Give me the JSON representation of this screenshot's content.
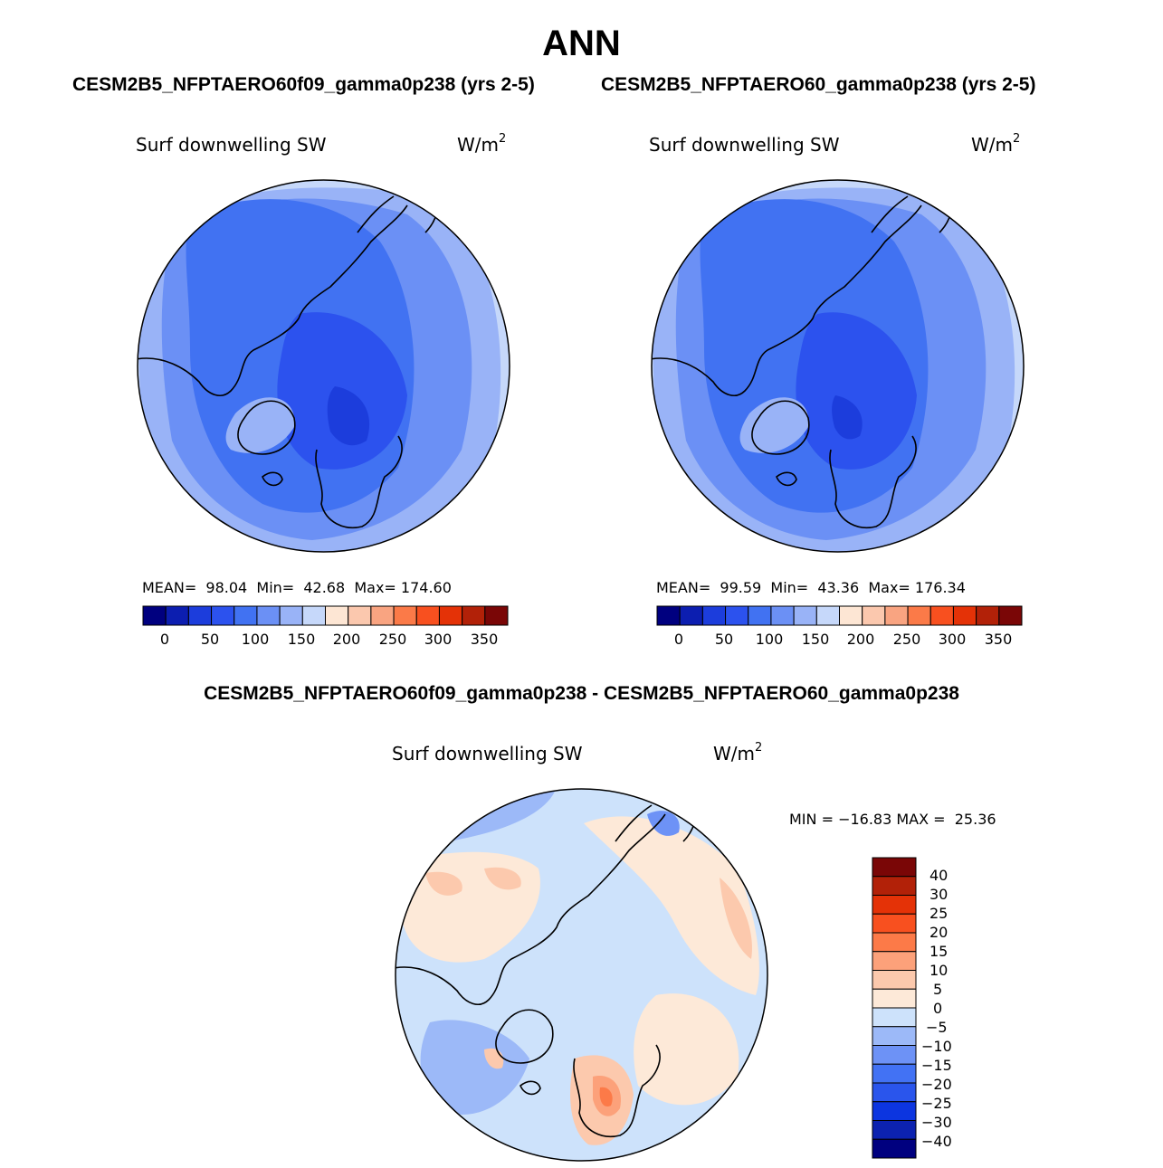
{
  "page": {
    "title": "ANN",
    "left_case": "CESM2B5_NFPTAERO60f09_gamma0p238 (yrs 2-5)",
    "right_case": "CESM2B5_NFPTAERO60_gamma0p238 (yrs 2-5)",
    "diff_title": "CESM2B5_NFPTAERO60f09_gamma0p238 - CESM2B5_NFPTAERO60_gamma0p238"
  },
  "colors": {
    "abs_palette": [
      "#00007f",
      "#0c1eb0",
      "#1c3ddc",
      "#2c52ee",
      "#4172f2",
      "#6b90f5",
      "#99b3f7",
      "#c6d8fa",
      "#fde6d4",
      "#fbc8ae",
      "#f9a481",
      "#fb7a48",
      "#f8501f",
      "#e43207",
      "#b22108",
      "#7a0606"
    ],
    "diff_palette": [
      "#00007f",
      "#0c22b0",
      "#0c35e0",
      "#2a55ec",
      "#4272f4",
      "#6d92f6",
      "#9cb9f8",
      "#cde2fb",
      "#fde9d8",
      "#fcc9ad",
      "#fca17a",
      "#fc7a48",
      "#f8501f",
      "#e43207",
      "#b22108",
      "#7a0606"
    ]
  },
  "panels": [
    {
      "id": "left",
      "var_label": "Surf downwelling SW",
      "unit_base": "W/m",
      "unit_exp": "2",
      "mean_label": "MEAN=",
      "mean_value": "98.04",
      "min_label": "Min=",
      "min_value": "42.68",
      "max_label": "Max=",
      "max_value": "174.60",
      "ticks": [
        "0",
        "50",
        "100",
        "150",
        "200",
        "250",
        "300",
        "350"
      ]
    },
    {
      "id": "right",
      "var_label": "Surf downwelling SW",
      "unit_base": "W/m",
      "unit_exp": "2",
      "mean_label": "MEAN=",
      "mean_value": "99.59",
      "min_label": "Min=",
      "min_value": "43.36",
      "max_label": "Max=",
      "max_value": "176.34",
      "ticks": [
        "0",
        "50",
        "100",
        "150",
        "200",
        "250",
        "300",
        "350"
      ]
    }
  ],
  "diff_panel": {
    "var_label": "Surf downwelling SW",
    "unit_base": "W/m",
    "unit_exp": "2",
    "minmax_text": "MIN = −16.83 MAX =  25.36",
    "ticks": [
      "40",
      "30",
      "25",
      "20",
      "15",
      "10",
      "5",
      "0",
      "−5",
      "−10",
      "−15",
      "−20",
      "−25",
      "−30",
      "−40"
    ]
  },
  "chart_data": [
    {
      "type": "heatmap",
      "projection": "north-polar-stereographic",
      "title": "CESM2B5_NFPTAERO60f09_gamma0p238 (yrs 2-5)",
      "variable": "Surf downwelling SW",
      "units": "W/m2",
      "mean": 98.04,
      "min": 42.68,
      "max": 174.6,
      "colorbar_levels": [
        0,
        25,
        50,
        75,
        100,
        125,
        150,
        175,
        200,
        225,
        250,
        275,
        300,
        325,
        350
      ],
      "colorbar_ticks": [
        0,
        50,
        100,
        150,
        200,
        250,
        300,
        350
      ]
    },
    {
      "type": "heatmap",
      "projection": "north-polar-stereographic",
      "title": "CESM2B5_NFPTAERO60_gamma0p238 (yrs 2-5)",
      "variable": "Surf downwelling SW",
      "units": "W/m2",
      "mean": 99.59,
      "min": 43.36,
      "max": 176.34,
      "colorbar_levels": [
        0,
        25,
        50,
        75,
        100,
        125,
        150,
        175,
        200,
        225,
        250,
        275,
        300,
        325,
        350
      ],
      "colorbar_ticks": [
        0,
        50,
        100,
        150,
        200,
        250,
        300,
        350
      ]
    },
    {
      "type": "heatmap",
      "projection": "north-polar-stereographic",
      "title": "CESM2B5_NFPTAERO60f09_gamma0p238 - CESM2B5_NFPTAERO60_gamma0p238",
      "variable": "Surf downwelling SW",
      "units": "W/m2",
      "min": -16.83,
      "max": 25.36,
      "colorbar_levels": [
        -40,
        -30,
        -25,
        -20,
        -15,
        -10,
        -5,
        0,
        5,
        10,
        15,
        20,
        25,
        30,
        40
      ]
    }
  ]
}
